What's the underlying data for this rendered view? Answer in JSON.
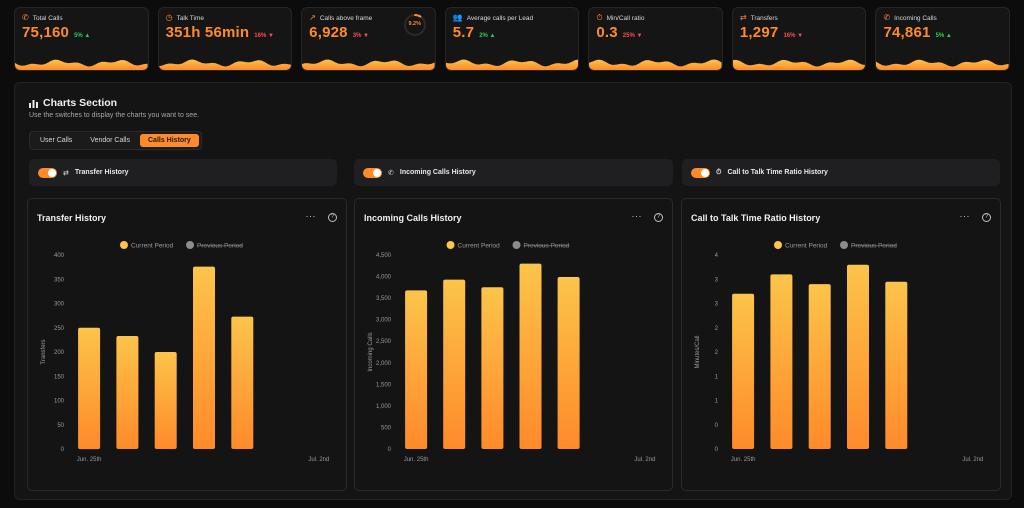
{
  "kpis": [
    {
      "id": "total-calls",
      "label": "Total Calls",
      "icon": "phone-icon",
      "glyph": "✆",
      "value": "75,160",
      "change": "5%",
      "direction": "up"
    },
    {
      "id": "talk-time",
      "label": "Talk Time",
      "icon": "clock-icon",
      "glyph": "◷",
      "value": "351h 56min",
      "change": "16%",
      "direction": "down"
    },
    {
      "id": "calls-above-frame",
      "label": "Calls above frame",
      "icon": "trend-up-icon",
      "glyph": "↗",
      "value": "6,928",
      "change": "3%",
      "direction": "down",
      "ring": "9.2%",
      "ring_fraction": 0.092
    },
    {
      "id": "avg-calls-per-lead",
      "label": "Average calls per Lead",
      "icon": "users-icon",
      "glyph": "👥",
      "value": "5.7",
      "change": "2%",
      "direction": "up"
    },
    {
      "id": "min-call-ratio",
      "label": "Min/Call ratio",
      "icon": "timer-icon",
      "glyph": "⏱",
      "value": "0.3",
      "change": "25%",
      "direction": "down"
    },
    {
      "id": "transfers",
      "label": "Transfers",
      "icon": "transfer-icon",
      "glyph": "⇄",
      "value": "1,297",
      "change": "16%",
      "direction": "down"
    },
    {
      "id": "incoming-calls",
      "label": "Incoming Calls",
      "icon": "incoming-call-icon",
      "glyph": "✆",
      "value": "74,861",
      "change": "5%",
      "direction": "up"
    }
  ],
  "section": {
    "title": "Charts Section",
    "subtitle": "Use the switches to display the charts you want to see.",
    "tabs": [
      "User Calls",
      "Vendor Calls",
      "Calls History"
    ],
    "active_tab": "Calls History"
  },
  "toggles": [
    {
      "label": "Transfer History",
      "on": true
    },
    {
      "label": "Incoming Calls History",
      "on": true
    },
    {
      "label": "Call to Talk Time Ratio History",
      "on": true
    }
  ],
  "colors": {
    "accent": "#ff8a2a",
    "bar_top": "#fcc44a",
    "bar_bottom": "#ff8a2a",
    "legend_current": "#fcc44a",
    "legend_previous": "#8c8c8c"
  },
  "legend": {
    "current": "Current Period",
    "previous": "Previous Period"
  },
  "chart_data": [
    {
      "type": "bar",
      "title": "Transfer History",
      "ylabel": "Transfers",
      "ylim": [
        0,
        400
      ],
      "yticks": [
        0,
        50,
        100,
        150,
        200,
        250,
        300,
        350,
        400
      ],
      "ytick_labels": [
        "0",
        "50",
        "100",
        "150",
        "200",
        "250",
        "300",
        "350",
        "400"
      ],
      "xtick_labels": [
        "Jun. 25th",
        "Jul. 2nd"
      ],
      "series": [
        {
          "name": "Current Period",
          "values": [
            250,
            233,
            200,
            376,
            273
          ]
        }
      ]
    },
    {
      "type": "bar",
      "title": "Incoming Calls History",
      "ylabel": "Incoming Calls",
      "ylim": [
        0,
        4500
      ],
      "yticks": [
        0,
        500,
        1000,
        1500,
        2000,
        2500,
        3000,
        3500,
        4000,
        4500
      ],
      "ytick_labels": [
        "0",
        "500",
        "1,000",
        "1,500",
        "2,000",
        "2,500",
        "3,000",
        "3,500",
        "4,000",
        "4,500"
      ],
      "xtick_labels": [
        "Jun. 25th",
        "Jul. 2nd"
      ],
      "series": [
        {
          "name": "Current Period",
          "values": [
            3680,
            3930,
            3750,
            4300,
            3990
          ]
        }
      ]
    },
    {
      "type": "bar",
      "title": "Call to Talk Time Ratio History",
      "ylabel": "Minutes/Call",
      "ylim": [
        0,
        4
      ],
      "yticks": [
        0,
        0.5,
        1,
        1.5,
        2,
        2.5,
        3,
        3.5,
        4
      ],
      "ytick_labels": [
        "0",
        "0",
        "1",
        "1",
        "2",
        "2",
        "3",
        "3",
        "4"
      ],
      "xtick_labels": [
        "Jun. 25th",
        "Jul. 2nd"
      ],
      "series": [
        {
          "name": "Current Period",
          "values": [
            3.2,
            3.6,
            3.4,
            3.8,
            3.45
          ]
        }
      ]
    }
  ]
}
